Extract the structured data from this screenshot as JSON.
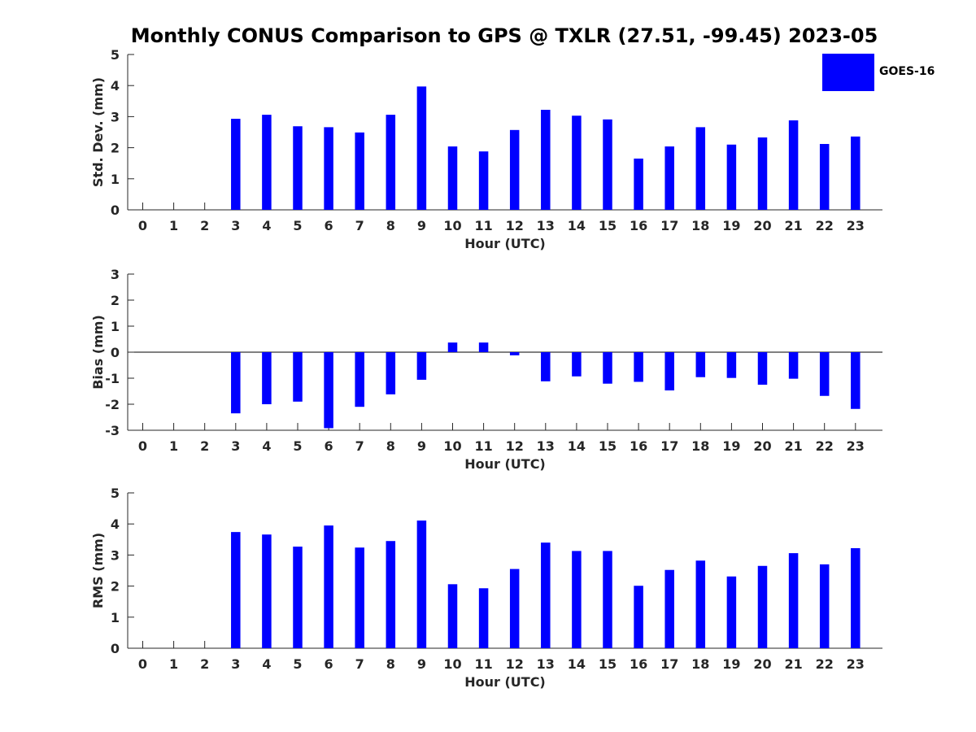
{
  "colors": {
    "bar": "#0000ff",
    "axis": "#262626",
    "background": "#ffffff"
  },
  "legend": {
    "entries": [
      {
        "label": "GOES-16",
        "color": "#0000ff"
      }
    ],
    "placement": "top-right"
  },
  "chart_data": [
    {
      "type": "bar",
      "title": "Monthly CONUS Comparison to GPS @ TXLR (27.51, -99.45) 2023-05",
      "xlabel": "Hour (UTC)",
      "ylabel": "Std. Dev. (mm)",
      "ylim": [
        0,
        5
      ],
      "yticks": [
        "0",
        "1",
        "2",
        "3",
        "4",
        "5"
      ],
      "categories": [
        "0",
        "1",
        "2",
        "3",
        "4",
        "5",
        "6",
        "7",
        "8",
        "9",
        "10",
        "11",
        "12",
        "13",
        "14",
        "15",
        "16",
        "17",
        "18",
        "19",
        "20",
        "21",
        "22",
        "23"
      ],
      "series": [
        {
          "name": "GOES-16",
          "values": [
            null,
            null,
            null,
            2.93,
            3.06,
            2.69,
            2.66,
            2.49,
            3.06,
            3.97,
            2.04,
            1.88,
            2.57,
            3.22,
            3.03,
            2.91,
            1.65,
            2.04,
            2.66,
            2.1,
            2.33,
            2.88,
            2.12,
            2.36
          ]
        }
      ],
      "grid": false
    },
    {
      "type": "bar",
      "title": "",
      "xlabel": "Hour (UTC)",
      "ylabel": "Bias (mm)",
      "ylim": [
        -3,
        3
      ],
      "yticks": [
        "-3",
        "-2",
        "-1",
        "0",
        "1",
        "2",
        "3"
      ],
      "categories": [
        "0",
        "1",
        "2",
        "3",
        "4",
        "5",
        "6",
        "7",
        "8",
        "9",
        "10",
        "11",
        "12",
        "13",
        "14",
        "15",
        "16",
        "17",
        "18",
        "19",
        "20",
        "21",
        "22",
        "23"
      ],
      "series": [
        {
          "name": "GOES-16",
          "values": [
            null,
            null,
            null,
            -2.35,
            -2.0,
            -1.9,
            -2.92,
            -2.1,
            -1.62,
            -1.06,
            0.37,
            0.37,
            -0.12,
            -1.12,
            -0.93,
            -1.21,
            -1.14,
            -1.47,
            -0.96,
            -0.99,
            -1.25,
            -1.02,
            -1.68,
            -2.18
          ]
        }
      ],
      "grid": false
    },
    {
      "type": "bar",
      "title": "",
      "xlabel": "Hour (UTC)",
      "ylabel": "RMS (mm)",
      "ylim": [
        0,
        5
      ],
      "yticks": [
        "0",
        "1",
        "2",
        "3",
        "4",
        "5"
      ],
      "categories": [
        "0",
        "1",
        "2",
        "3",
        "4",
        "5",
        "6",
        "7",
        "8",
        "9",
        "10",
        "11",
        "12",
        "13",
        "14",
        "15",
        "16",
        "17",
        "18",
        "19",
        "20",
        "21",
        "22",
        "23"
      ],
      "series": [
        {
          "name": "GOES-16",
          "values": [
            null,
            null,
            null,
            3.74,
            3.66,
            3.27,
            3.95,
            3.24,
            3.45,
            4.11,
            2.06,
            1.93,
            2.55,
            3.4,
            3.13,
            3.13,
            2.01,
            2.52,
            2.82,
            2.31,
            2.65,
            3.06,
            2.7,
            3.22
          ]
        }
      ],
      "grid": false
    }
  ]
}
